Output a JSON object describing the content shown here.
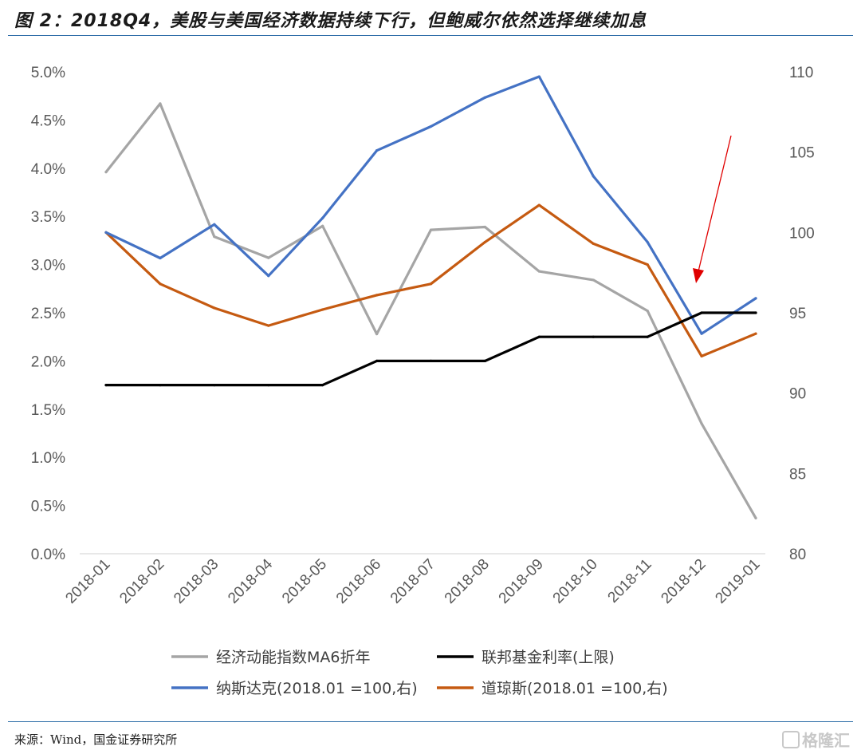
{
  "header": {
    "title": "图 2：2018Q4，美股与美国经济数据持续下行，但鲍威尔依然选择继续加息"
  },
  "footer": {
    "source": "来源：Wind，国金证券研究所",
    "watermark": "格隆汇"
  },
  "chart_data": {
    "type": "line",
    "title": "",
    "categories": [
      "2018-01",
      "2018-02",
      "2018-03",
      "2018-04",
      "2018-05",
      "2018-06",
      "2018-07",
      "2018-08",
      "2018-09",
      "2018-10",
      "2018-11",
      "2018-12",
      "2019-01"
    ],
    "y_left": {
      "min": 0,
      "max": 5.0,
      "step": 0.5,
      "ticks": [
        "0.0%",
        "0.5%",
        "1.0%",
        "1.5%",
        "2.0%",
        "2.5%",
        "3.0%",
        "3.5%",
        "4.0%",
        "4.5%",
        "5.0%"
      ]
    },
    "y_right": {
      "min": 80,
      "max": 110,
      "step": 5,
      "ticks": [
        "80",
        "85",
        "90",
        "95",
        "100",
        "105",
        "110"
      ]
    },
    "grid": false,
    "legend_position": "bottom",
    "series": [
      {
        "name": "经济动能指数MA6折年",
        "axis": "left",
        "color": "#a5a5a5",
        "values": [
          3.96,
          4.67,
          3.29,
          3.07,
          3.4,
          2.28,
          3.36,
          3.39,
          2.93,
          2.84,
          2.52,
          1.35,
          0.37
        ]
      },
      {
        "name": "联邦基金利率(上限)",
        "axis": "left",
        "color": "#000000",
        "step": true,
        "values": [
          1.75,
          1.75,
          1.75,
          1.75,
          1.75,
          2.0,
          2.0,
          2.0,
          2.25,
          2.25,
          2.25,
          2.5,
          2.5
        ]
      },
      {
        "name": "纳斯达克(2018.01 =100,右)",
        "axis": "right",
        "color": "#4472c4",
        "values": [
          100.0,
          98.4,
          100.5,
          97.3,
          100.9,
          105.1,
          106.6,
          108.4,
          109.7,
          103.5,
          99.4,
          93.7,
          95.9
        ]
      },
      {
        "name": "道琼斯(2018.01 =100,右)",
        "axis": "right",
        "color": "#c55a11",
        "values": [
          100.0,
          96.8,
          95.3,
          94.2,
          95.2,
          96.1,
          96.8,
          99.4,
          101.7,
          99.3,
          98.0,
          92.3,
          93.7
        ]
      }
    ],
    "annotation": {
      "type": "arrow",
      "color": "#e00000"
    }
  }
}
